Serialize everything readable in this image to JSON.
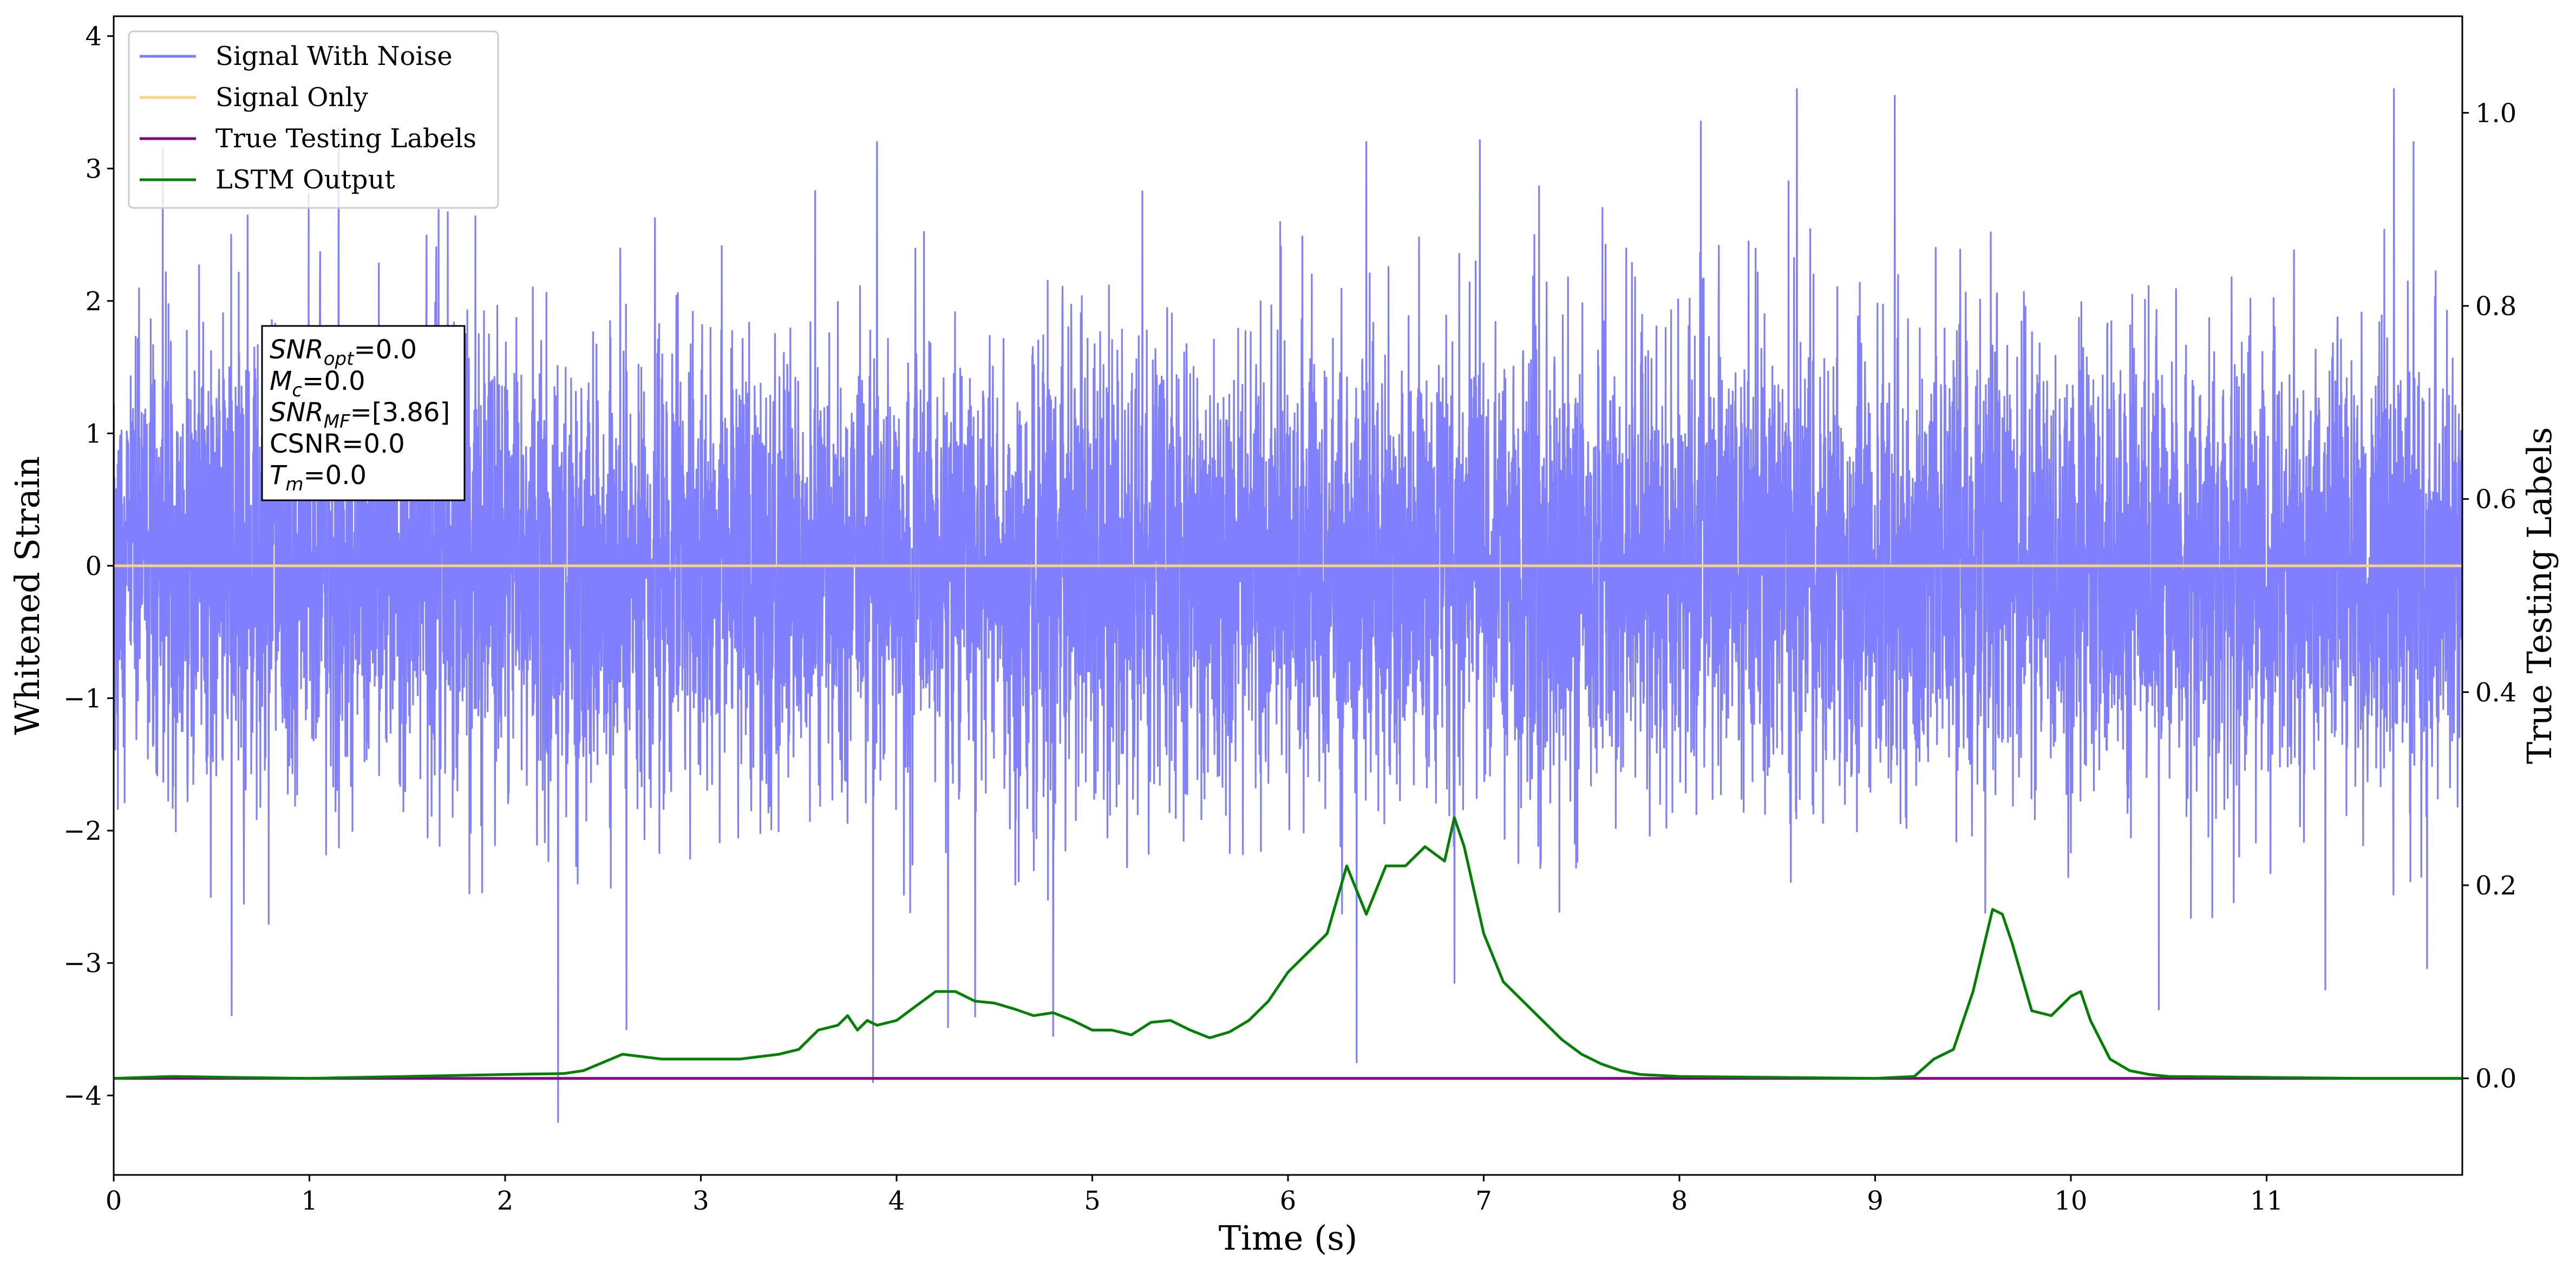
{
  "chart_data": {
    "type": "line",
    "xlabel": "Time (s)",
    "ylabel": "Whitened Strain",
    "y2label": "True Testing Labels",
    "xlim": [
      0,
      12
    ],
    "ylim": [
      -4.6,
      4.15
    ],
    "y2lim": [
      -0.1,
      1.1
    ],
    "xticks": [
      0,
      1,
      2,
      3,
      4,
      5,
      6,
      7,
      8,
      9,
      10,
      11
    ],
    "xtick_labels": [
      "0",
      "1",
      "2",
      "3",
      "4",
      "5",
      "6",
      "7",
      "8",
      "9",
      "10",
      "11"
    ],
    "yticks": [
      -4,
      -3,
      -2,
      -1,
      0,
      1,
      2,
      3,
      4
    ],
    "ytick_labels": [
      "−4",
      "−3",
      "−2",
      "−1",
      "0",
      "1",
      "2",
      "3",
      "4"
    ],
    "y2ticks": [
      0.0,
      0.2,
      0.4,
      0.6,
      0.8,
      1.0
    ],
    "y2tick_labels": [
      "0.0",
      "0.2",
      "0.4",
      "0.6",
      "0.8",
      "1.0"
    ],
    "grid": false,
    "legend_placement": "top-left",
    "series": [
      {
        "name": "Signal With Noise",
        "color": "#7f7fff",
        "axis": "left",
        "noise": {
          "mean": 0.0,
          "std": 0.85,
          "min": -4.2,
          "max": 3.7,
          "duration": 12
        },
        "spikes": [
          [
            0.25,
            3.15
          ],
          [
            0.6,
            2.5
          ],
          [
            1.15,
            3.3
          ],
          [
            2.27,
            -4.2
          ],
          [
            2.62,
            -3.5
          ],
          [
            3.88,
            -3.9
          ],
          [
            3.9,
            3.2
          ],
          [
            4.8,
            -3.55
          ],
          [
            6.35,
            -3.75
          ],
          [
            6.4,
            3.2
          ],
          [
            6.85,
            -3.15
          ],
          [
            8.6,
            3.6
          ],
          [
            9.1,
            3.55
          ],
          [
            10.45,
            -3.35
          ],
          [
            11.65,
            3.6
          ],
          [
            11.75,
            3.2
          ],
          [
            11.3,
            -3.2
          ]
        ]
      },
      {
        "name": "Signal Only",
        "color": "#ffd27f",
        "axis": "left",
        "x": [
          0,
          12
        ],
        "y": [
          0,
          0
        ]
      },
      {
        "name": "True Testing Labels",
        "color": "#800080",
        "axis": "right",
        "x": [
          0,
          12
        ],
        "y": [
          0,
          0
        ]
      },
      {
        "name": "LSTM Output",
        "color": "#008000",
        "axis": "right",
        "x": [
          0.0,
          0.3,
          0.6,
          1.0,
          1.5,
          2.0,
          2.3,
          2.4,
          2.6,
          2.8,
          3.0,
          3.2,
          3.4,
          3.5,
          3.6,
          3.7,
          3.75,
          3.8,
          3.85,
          3.9,
          4.0,
          4.1,
          4.2,
          4.3,
          4.4,
          4.5,
          4.6,
          4.7,
          4.8,
          4.9,
          5.0,
          5.1,
          5.2,
          5.3,
          5.4,
          5.5,
          5.6,
          5.7,
          5.8,
          5.9,
          6.0,
          6.1,
          6.2,
          6.3,
          6.4,
          6.5,
          6.6,
          6.7,
          6.8,
          6.85,
          6.9,
          7.0,
          7.1,
          7.2,
          7.3,
          7.4,
          7.5,
          7.6,
          7.7,
          7.8,
          8.0,
          8.5,
          9.0,
          9.2,
          9.3,
          9.4,
          9.5,
          9.6,
          9.65,
          9.7,
          9.8,
          9.9,
          10.0,
          10.05,
          10.1,
          10.2,
          10.3,
          10.4,
          10.5,
          11.0,
          11.5,
          12.0
        ],
        "y": [
          0.0,
          0.002,
          0.001,
          0.0,
          0.002,
          0.004,
          0.005,
          0.008,
          0.025,
          0.02,
          0.02,
          0.02,
          0.025,
          0.03,
          0.05,
          0.055,
          0.065,
          0.05,
          0.06,
          0.055,
          0.06,
          0.075,
          0.09,
          0.09,
          0.08,
          0.078,
          0.072,
          0.065,
          0.068,
          0.06,
          0.05,
          0.05,
          0.045,
          0.058,
          0.06,
          0.05,
          0.042,
          0.048,
          0.06,
          0.08,
          0.11,
          0.13,
          0.15,
          0.22,
          0.17,
          0.22,
          0.22,
          0.24,
          0.225,
          0.27,
          0.24,
          0.15,
          0.1,
          0.08,
          0.06,
          0.04,
          0.025,
          0.015,
          0.008,
          0.004,
          0.002,
          0.001,
          0.0,
          0.002,
          0.02,
          0.03,
          0.09,
          0.175,
          0.17,
          0.14,
          0.07,
          0.065,
          0.085,
          0.09,
          0.06,
          0.02,
          0.008,
          0.004,
          0.002,
          0.001,
          0.0,
          0.0
        ]
      }
    ],
    "annotation": {
      "snr_opt_base": "SNR",
      "snr_opt_sub": "opt",
      "snr_opt_value": "=0.0",
      "mc_base": "M",
      "mc_sub": "c",
      "mc_value": "=0.0",
      "snr_mf_base": "SNR",
      "snr_mf_sub": "MF",
      "snr_mf_value": "=[3.86]",
      "csnr_text": "CSNR=0.0",
      "tm_base": "T",
      "tm_sub": "m",
      "tm_value": "=0.0"
    }
  }
}
